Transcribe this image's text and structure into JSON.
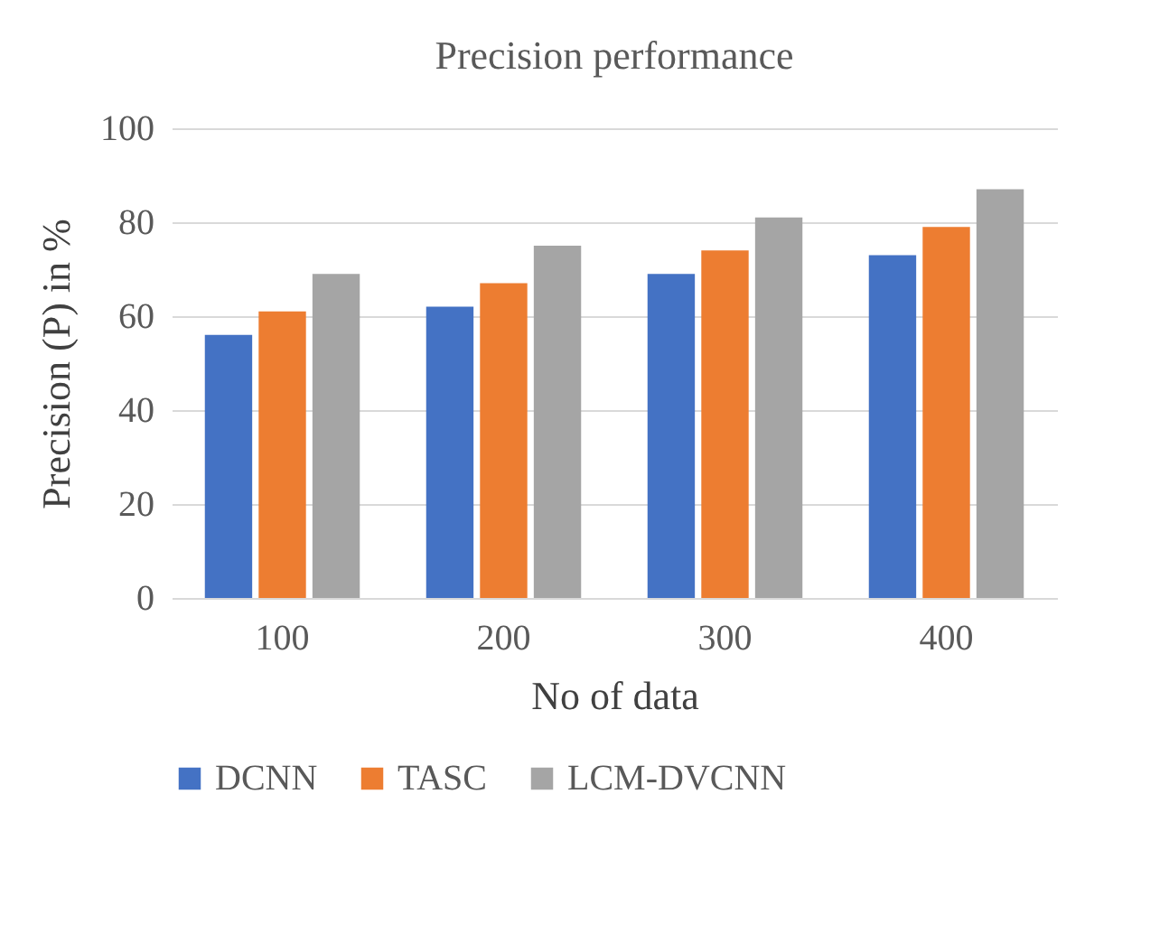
{
  "chart_data": {
    "type": "bar",
    "title": "Precision performance",
    "xlabel": "No of data",
    "ylabel": "Precision (P) in %",
    "categories": [
      "100",
      "200",
      "300",
      "400"
    ],
    "series": [
      {
        "name": "DCNN",
        "color": "#4472c4",
        "values": [
          56,
          62,
          69,
          73
        ]
      },
      {
        "name": "TASC",
        "color": "#ed7d31",
        "values": [
          61,
          67,
          74,
          79
        ]
      },
      {
        "name": "LCM-DVCNN",
        "color": "#a5a5a5",
        "values": [
          69,
          75,
          81,
          87
        ]
      }
    ],
    "ylim": [
      0,
      100
    ],
    "yticks": [
      0,
      20,
      40,
      60,
      80,
      100
    ],
    "grid": "y",
    "legend": "bottom"
  }
}
